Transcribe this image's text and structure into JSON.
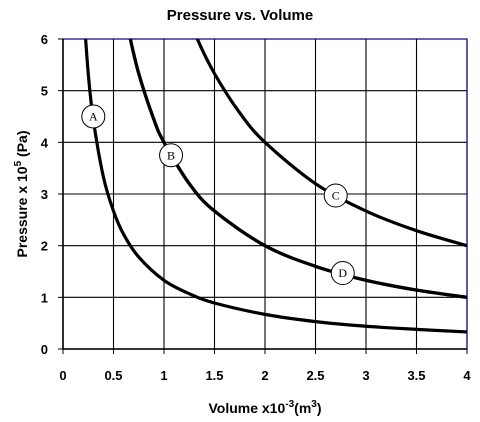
{
  "chart_data": {
    "type": "line",
    "title": "Pressure vs. Volume",
    "xlabel": "Volume x10",
    "xlabel_exp": "-3",
    "xlabel_unit": "(m",
    "xlabel_unit_exp": "3",
    "xlabel_close": ")",
    "ylabel": "Pressure x 10",
    "ylabel_exp": "5",
    "ylabel_unit": " (Pa)",
    "xlim": [
      0,
      4
    ],
    "ylim": [
      0,
      6
    ],
    "x_ticks": [
      "0",
      "0.5",
      "1",
      "1.5",
      "2",
      "2.5",
      "3",
      "3.5",
      "4"
    ],
    "y_ticks": [
      "0",
      "1",
      "2",
      "3",
      "4",
      "5",
      "6"
    ],
    "grid": true,
    "colors": {
      "curve": "#000000",
      "grid": "#000000",
      "border": "#000080",
      "marker_fill": "#ffffff"
    },
    "series": [
      {
        "name": "A",
        "label_at": [
          0.3,
          4.5
        ],
        "points": [
          [
            0.2,
            6.67
          ],
          [
            0.25,
            5.33
          ],
          [
            0.3,
            4.44
          ],
          [
            0.4,
            3.33
          ],
          [
            0.5,
            2.67
          ],
          [
            0.6,
            2.22
          ],
          [
            0.75,
            1.78
          ],
          [
            1.0,
            1.33
          ],
          [
            1.25,
            1.07
          ],
          [
            1.5,
            0.89
          ],
          [
            2.0,
            0.67
          ],
          [
            2.5,
            0.53
          ],
          [
            3.0,
            0.44
          ],
          [
            3.5,
            0.38
          ],
          [
            4.0,
            0.33
          ]
        ]
      },
      {
        "name": "B",
        "label_at": [
          1.07,
          3.75
        ],
        "points": [
          [
            0.6,
            6.67
          ],
          [
            0.65,
            6.15
          ],
          [
            0.75,
            5.33
          ],
          [
            0.9,
            4.44
          ],
          [
            1.0,
            4.0
          ],
          [
            1.25,
            3.2
          ],
          [
            1.5,
            2.67
          ],
          [
            2.0,
            2.0
          ],
          [
            2.5,
            1.6
          ],
          [
            3.0,
            1.33
          ],
          [
            3.5,
            1.14
          ],
          [
            4.0,
            1.0
          ]
        ]
      },
      {
        "name": "C",
        "label_at": [
          2.7,
          2.97
        ],
        "points": [
          [
            1.2,
            6.67
          ],
          [
            1.33,
            6.0
          ],
          [
            1.5,
            5.33
          ],
          [
            1.75,
            4.57
          ],
          [
            2.0,
            4.0
          ],
          [
            2.5,
            3.2
          ],
          [
            3.0,
            2.67
          ],
          [
            3.5,
            2.29
          ],
          [
            4.0,
            2.0
          ]
        ]
      },
      {
        "name": "D",
        "label_at": [
          2.77,
          1.47
        ],
        "points": [
          [
            0.6,
            6.67
          ],
          [
            0.65,
            6.15
          ],
          [
            0.75,
            5.33
          ],
          [
            0.9,
            4.44
          ],
          [
            1.0,
            4.0
          ],
          [
            1.25,
            3.2
          ],
          [
            1.5,
            2.67
          ],
          [
            2.0,
            2.0
          ],
          [
            2.5,
            1.6
          ],
          [
            3.0,
            1.33
          ],
          [
            3.5,
            1.14
          ],
          [
            4.0,
            1.0
          ]
        ]
      }
    ]
  }
}
